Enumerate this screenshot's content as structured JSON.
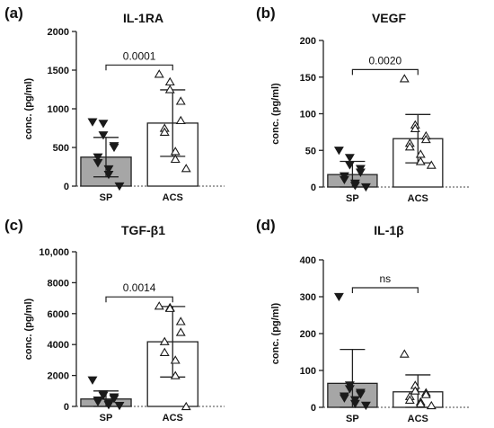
{
  "chart_data": [
    {
      "type": "bar",
      "panel_label": "(a)",
      "title": "IL-1RA",
      "ylabel": "conc. (pg/ml)",
      "ylim": [
        0,
        2000
      ],
      "yticks": [
        0,
        500,
        1000,
        1500,
        2000
      ],
      "ytick_labels": [
        "0",
        "500",
        "1000",
        "1500",
        "2000"
      ],
      "categories": [
        "SP",
        "ACS"
      ],
      "values": [
        375,
        815
      ],
      "sd": [
        255,
        430
      ],
      "points": [
        [
          830,
          810,
          660,
          520,
          500,
          375,
          300,
          220,
          150,
          0
        ],
        [
          1450,
          1350,
          1250,
          1100,
          850,
          750,
          700,
          450,
          350,
          230
        ]
      ],
      "comparison": "0.0001",
      "bar_colors": [
        "#a6a6a6",
        "#ffffff"
      ]
    },
    {
      "type": "bar",
      "panel_label": "(b)",
      "title": "VEGF",
      "ylabel": "conc. (pg/ml)",
      "ylim": [
        0,
        200
      ],
      "yticks": [
        0,
        50,
        100,
        150,
        200
      ],
      "ytick_labels": [
        "0",
        "50",
        "100",
        "150",
        "200"
      ],
      "categories": [
        "SP",
        "ACS"
      ],
      "values": [
        17,
        66
      ],
      "sd": [
        18,
        33
      ],
      "points": [
        [
          50,
          40,
          30,
          25,
          20,
          15,
          10,
          5,
          2,
          0
        ],
        [
          148,
          85,
          80,
          70,
          65,
          60,
          55,
          45,
          35,
          30
        ]
      ],
      "comparison": "0.0020",
      "bar_colors": [
        "#a6a6a6",
        "#ffffff"
      ]
    },
    {
      "type": "bar",
      "panel_label": "(c)",
      "title": "TGF-β1",
      "ylabel": "conc. (pg/ml)",
      "ylim": [
        0,
        10000
      ],
      "yticks": [
        0,
        2000,
        4000,
        6000,
        8000,
        10000
      ],
      "ytick_labels": [
        "0",
        "2000",
        "4000",
        "6000",
        "8000",
        "10,000"
      ],
      "categories": [
        "SP",
        "ACS"
      ],
      "values": [
        480,
        4180
      ],
      "sd": [
        520,
        2280
      ],
      "points": [
        [
          1700,
          800,
          700,
          600,
          500,
          400,
          300,
          200,
          100,
          50
        ],
        [
          6500,
          6400,
          6350,
          5500,
          4800,
          4200,
          3500,
          3000,
          2000,
          0
        ]
      ],
      "comparison": "0.0014",
      "bar_colors": [
        "#a6a6a6",
        "#ffffff"
      ]
    },
    {
      "type": "bar",
      "panel_label": "(d)",
      "title": "IL-1β",
      "ylabel": "conc. (pg/ml)",
      "ylim": [
        0,
        400
      ],
      "yticks": [
        0,
        100,
        200,
        300,
        400
      ],
      "ytick_labels": [
        "0",
        "100",
        "200",
        "300",
        "400"
      ],
      "categories": [
        "SP",
        "ACS"
      ],
      "values": [
        65,
        42
      ],
      "sd": [
        92,
        46
      ],
      "points": [
        [
          300,
          60,
          50,
          40,
          35,
          30,
          25,
          20,
          10,
          5
        ],
        [
          145,
          60,
          45,
          40,
          35,
          30,
          20,
          15,
          10,
          5
        ]
      ],
      "comparison": "ns",
      "bar_colors": [
        "#a6a6a6",
        "#ffffff"
      ]
    }
  ]
}
